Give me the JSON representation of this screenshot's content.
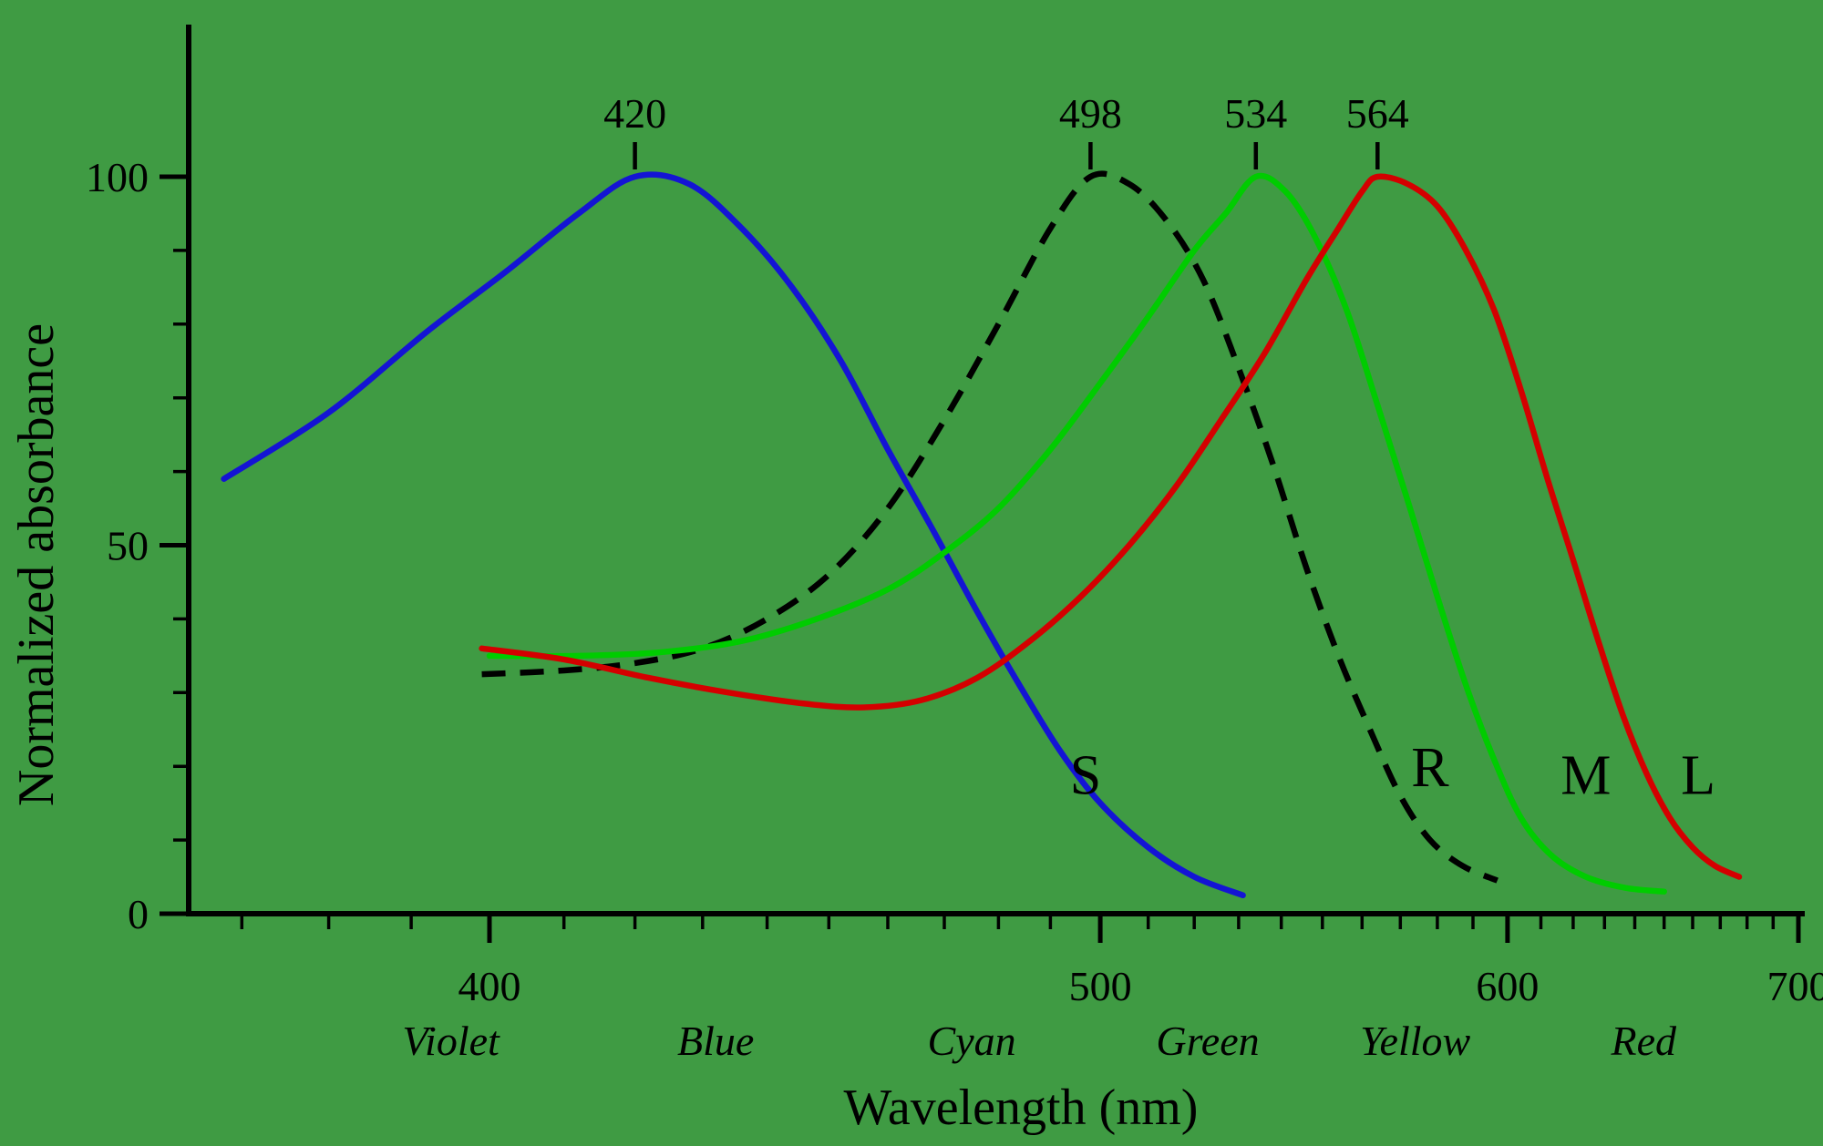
{
  "background_color": "#3f9b43",
  "chart_data": {
    "type": "line",
    "title": "",
    "xlabel": "Wavelength (nm)",
    "ylabel": "Normalized absorbance",
    "x_scale": "linear-in-inverse-wavelength",
    "xlim": [
      364,
      700
    ],
    "ylim": [
      0,
      100
    ],
    "grid": false,
    "x_major_ticks": [
      400,
      500,
      600,
      700
    ],
    "x_minor_step_nm": 10,
    "y_major_ticks": [
      0,
      50,
      100
    ],
    "y_minor_step": 10,
    "peak_markers": [
      {
        "wavelength": 420,
        "label": "420"
      },
      {
        "wavelength": 498,
        "label": "498"
      },
      {
        "wavelength": 534,
        "label": "534"
      },
      {
        "wavelength": 564,
        "label": "564"
      }
    ],
    "spectral_region_labels": [
      {
        "label": "Violet",
        "wavelength": 395
      },
      {
        "label": "Blue",
        "wavelength": 432
      },
      {
        "label": "Cyan",
        "wavelength": 475
      },
      {
        "label": "Green",
        "wavelength": 523
      },
      {
        "label": "Yellow",
        "wavelength": 574
      },
      {
        "label": "Red",
        "wavelength": 643
      }
    ],
    "series": [
      {
        "name": "S",
        "color": "#1414d4",
        "dashed": false,
        "peak_nm": 420,
        "label": {
          "text": "S",
          "wavelength": 497,
          "value": 19
        },
        "points": [
          [
            368,
            59
          ],
          [
            380,
            68
          ],
          [
            392,
            79
          ],
          [
            402,
            87
          ],
          [
            412,
            95
          ],
          [
            420,
            100
          ],
          [
            428,
            99
          ],
          [
            436,
            93
          ],
          [
            444,
            85
          ],
          [
            452,
            75
          ],
          [
            460,
            63
          ],
          [
            468,
            52
          ],
          [
            476,
            41
          ],
          [
            484,
            31
          ],
          [
            492,
            22
          ],
          [
            500,
            15
          ],
          [
            510,
            9
          ],
          [
            520,
            5
          ],
          [
            531,
            2.5
          ]
        ]
      },
      {
        "name": "R",
        "color": "#000000",
        "dashed": true,
        "peak_nm": 498,
        "label": {
          "text": "R",
          "wavelength": 578,
          "value": 20
        },
        "points": [
          [
            399,
            32.5
          ],
          [
            410,
            33
          ],
          [
            420,
            34
          ],
          [
            430,
            36
          ],
          [
            440,
            40
          ],
          [
            450,
            46
          ],
          [
            460,
            55
          ],
          [
            470,
            67
          ],
          [
            480,
            80
          ],
          [
            490,
            93
          ],
          [
            498,
            100
          ],
          [
            506,
            99
          ],
          [
            514,
            94
          ],
          [
            522,
            86
          ],
          [
            530,
            74
          ],
          [
            538,
            61
          ],
          [
            546,
            47
          ],
          [
            554,
            35
          ],
          [
            562,
            25
          ],
          [
            570,
            16
          ],
          [
            578,
            10
          ],
          [
            587,
            6.5
          ],
          [
            597,
            4.5
          ]
        ]
      },
      {
        "name": "M",
        "color": "#00cc00",
        "dashed": false,
        "peak_nm": 534,
        "label": {
          "text": "M",
          "wavelength": 624,
          "value": 19
        },
        "points": [
          [
            400,
            35
          ],
          [
            412,
            35
          ],
          [
            424,
            35.5
          ],
          [
            436,
            37
          ],
          [
            448,
            40
          ],
          [
            460,
            44
          ],
          [
            470,
            49
          ],
          [
            480,
            55
          ],
          [
            490,
            63
          ],
          [
            500,
            72
          ],
          [
            510,
            81
          ],
          [
            520,
            90
          ],
          [
            527,
            95
          ],
          [
            534,
            100
          ],
          [
            541,
            98
          ],
          [
            548,
            92
          ],
          [
            556,
            82
          ],
          [
            564,
            69
          ],
          [
            572,
            56
          ],
          [
            580,
            43
          ],
          [
            588,
            31
          ],
          [
            596,
            21
          ],
          [
            604,
            13
          ],
          [
            613,
            8
          ],
          [
            624,
            5
          ],
          [
            637,
            3.5
          ],
          [
            650,
            3
          ]
        ]
      },
      {
        "name": "L",
        "color": "#d40000",
        "dashed": false,
        "peak_nm": 564,
        "label": {
          "text": "L",
          "wavelength": 662,
          "value": 19
        },
        "points": [
          [
            399,
            36
          ],
          [
            410,
            34.5
          ],
          [
            422,
            32
          ],
          [
            434,
            30
          ],
          [
            446,
            28.5
          ],
          [
            456,
            28
          ],
          [
            466,
            29
          ],
          [
            476,
            32
          ],
          [
            486,
            37
          ],
          [
            496,
            43
          ],
          [
            506,
            50
          ],
          [
            516,
            58
          ],
          [
            526,
            67
          ],
          [
            536,
            76
          ],
          [
            546,
            86
          ],
          [
            554,
            93
          ],
          [
            560,
            98
          ],
          [
            564,
            100
          ],
          [
            572,
            99
          ],
          [
            580,
            96
          ],
          [
            588,
            90
          ],
          [
            596,
            82
          ],
          [
            604,
            71
          ],
          [
            612,
            59
          ],
          [
            620,
            48
          ],
          [
            628,
            37
          ],
          [
            636,
            27
          ],
          [
            644,
            19
          ],
          [
            652,
            13
          ],
          [
            660,
            9
          ],
          [
            668,
            6.5
          ],
          [
            677,
            5
          ]
        ]
      }
    ]
  }
}
